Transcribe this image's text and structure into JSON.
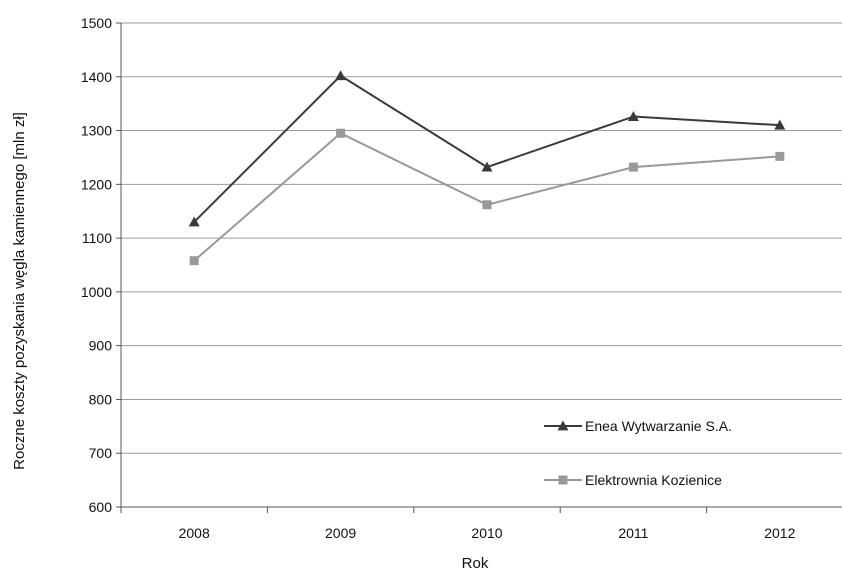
{
  "chart_data": {
    "type": "line",
    "title": "",
    "xlabel": "Rok",
    "ylabel": "Roczne koszty pozyskania węgla kamiennego [mln zł]",
    "x": [
      "2008",
      "2009",
      "2010",
      "2011",
      "2012"
    ],
    "ylim": [
      600,
      1500
    ],
    "yticks": [
      600,
      700,
      800,
      900,
      1000,
      1100,
      1200,
      1300,
      1400,
      1500
    ],
    "grid": true,
    "legend_position": "bottom-right",
    "series": [
      {
        "name": "Enea Wytwarzanie S.A.",
        "marker": "triangle",
        "color": "#3a3a3a",
        "values": [
          1130,
          1402,
          1232,
          1326,
          1310
        ]
      },
      {
        "name": "Elektrownia Kozienice",
        "marker": "square",
        "color": "#999999",
        "values": [
          1058,
          1295,
          1162,
          1232,
          1252
        ]
      }
    ]
  }
}
